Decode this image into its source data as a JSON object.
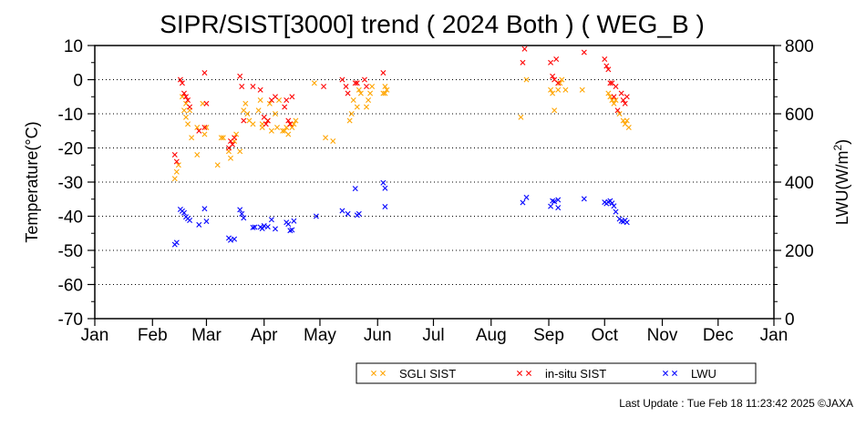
{
  "chart_data": {
    "type": "scatter",
    "title": "SIPR/SIST[3000] trend ( 2024 Both ) ( WEG_B )",
    "ylabel": "Temperature(°C)",
    "y2label_prefix": "LWU(W/m",
    "y2label_sup": "2",
    "y2label_suffix": ")",
    "ylim": [
      -70,
      10
    ],
    "y2lim": [
      0,
      800
    ],
    "yticks": [
      10,
      0,
      -10,
      -20,
      -30,
      -40,
      -50,
      -60,
      -70
    ],
    "y2ticks": [
      800,
      600,
      400,
      200,
      0
    ],
    "xlim_days": [
      0,
      365
    ],
    "xticks": [
      {
        "label": "Jan",
        "day": 0
      },
      {
        "label": "Feb",
        "day": 31
      },
      {
        "label": "Mar",
        "day": 60
      },
      {
        "label": "Apr",
        "day": 91
      },
      {
        "label": "May",
        "day": 121
      },
      {
        "label": "Jun",
        "day": 152
      },
      {
        "label": "Jul",
        "day": 182
      },
      {
        "label": "Aug",
        "day": 213
      },
      {
        "label": "Sep",
        "day": 244
      },
      {
        "label": "Oct",
        "day": 274
      },
      {
        "label": "Nov",
        "day": 305
      },
      {
        "label": "Dec",
        "day": 335
      },
      {
        "label": "Jan",
        "day": 365
      }
    ],
    "grid": "dotted horizontal",
    "legend_placement": "bottom-right",
    "series": [
      {
        "name": "SGLI SIST",
        "color": "#ffa500",
        "axis": "left",
        "points": [
          [
            43,
            -29
          ],
          [
            44,
            -27
          ],
          [
            45,
            -25
          ],
          [
            47,
            -5
          ],
          [
            48,
            -9
          ],
          [
            49,
            -11
          ],
          [
            49,
            -7
          ],
          [
            50,
            -13
          ],
          [
            51,
            -9
          ],
          [
            52,
            -17
          ],
          [
            55,
            -14
          ],
          [
            55,
            -22
          ],
          [
            58,
            -7
          ],
          [
            59,
            -16
          ],
          [
            60,
            -14
          ],
          [
            66,
            -25
          ],
          [
            68,
            -17
          ],
          [
            69,
            -17
          ],
          [
            72,
            -21
          ],
          [
            73,
            -23
          ],
          [
            75,
            -18
          ],
          [
            76,
            -16
          ],
          [
            78,
            -21
          ],
          [
            80,
            -9
          ],
          [
            81,
            -7
          ],
          [
            82,
            -10
          ],
          [
            83,
            -12
          ],
          [
            85,
            -13
          ],
          [
            88,
            -9
          ],
          [
            89,
            -6
          ],
          [
            90,
            -13
          ],
          [
            90,
            -14
          ],
          [
            93,
            -12
          ],
          [
            94,
            -7
          ],
          [
            95,
            -15
          ],
          [
            97,
            -10
          ],
          [
            98,
            -14
          ],
          [
            99,
            -6
          ],
          [
            101,
            -15
          ],
          [
            102,
            -15
          ],
          [
            103,
            -14
          ],
          [
            104,
            -16
          ],
          [
            105,
            -13
          ],
          [
            106,
            -14
          ],
          [
            107,
            -13
          ],
          [
            108,
            -12
          ],
          [
            118,
            -1
          ],
          [
            124,
            -17
          ],
          [
            128,
            -18
          ],
          [
            137,
            -12
          ],
          [
            138,
            -10
          ],
          [
            139,
            -6
          ],
          [
            141,
            -8
          ],
          [
            142,
            -3
          ],
          [
            143,
            -4
          ],
          [
            146,
            -8
          ],
          [
            147,
            -6
          ],
          [
            148,
            -4
          ],
          [
            149,
            -2
          ],
          [
            155,
            -4
          ],
          [
            156,
            -4
          ],
          [
            156,
            -2
          ],
          [
            157,
            -3
          ],
          [
            229,
            -11
          ],
          [
            232,
            0
          ],
          [
            245,
            -3
          ],
          [
            246,
            -4
          ],
          [
            247,
            -9
          ],
          [
            249,
            -3
          ],
          [
            250,
            -1
          ],
          [
            251,
            0
          ],
          [
            253,
            -3
          ],
          [
            262,
            -3
          ],
          [
            276,
            -4
          ],
          [
            277,
            -5
          ],
          [
            278,
            -6
          ],
          [
            279,
            -7
          ],
          [
            280,
            -6
          ],
          [
            282,
            -10
          ],
          [
            284,
            -12
          ],
          [
            285,
            -13
          ],
          [
            286,
            -12
          ],
          [
            287,
            -14
          ]
        ]
      },
      {
        "name": "in-situ SIST",
        "color": "#ff0000",
        "axis": "left",
        "points": [
          [
            43,
            -22
          ],
          [
            44,
            -24
          ],
          [
            46,
            0
          ],
          [
            47,
            -1
          ],
          [
            48,
            -4
          ],
          [
            49,
            -5
          ],
          [
            50,
            -6
          ],
          [
            51,
            -8
          ],
          [
            56,
            -15
          ],
          [
            59,
            2
          ],
          [
            59,
            -14
          ],
          [
            60,
            -7
          ],
          [
            72,
            -20
          ],
          [
            73,
            -18
          ],
          [
            74,
            -19
          ],
          [
            75,
            -17
          ],
          [
            78,
            1
          ],
          [
            79,
            -2
          ],
          [
            80,
            -12
          ],
          [
            85,
            -2
          ],
          [
            89,
            -3
          ],
          [
            91,
            -11
          ],
          [
            92,
            -13
          ],
          [
            93,
            -12
          ],
          [
            95,
            -6
          ],
          [
            97,
            -5
          ],
          [
            102,
            -8
          ],
          [
            103,
            -6
          ],
          [
            104,
            -12
          ],
          [
            105,
            -13
          ],
          [
            106,
            -5
          ],
          [
            123,
            -2
          ],
          [
            133,
            0
          ],
          [
            135,
            -2
          ],
          [
            136,
            -4
          ],
          [
            140,
            -1
          ],
          [
            141,
            -1
          ],
          [
            145,
            0
          ],
          [
            146,
            -2
          ],
          [
            155,
            2
          ],
          [
            230,
            5
          ],
          [
            231,
            9
          ],
          [
            245,
            5
          ],
          [
            246,
            1
          ],
          [
            247,
            0
          ],
          [
            248,
            6
          ],
          [
            249,
            -1
          ],
          [
            263,
            8
          ],
          [
            274,
            6
          ],
          [
            275,
            4
          ],
          [
            276,
            3
          ],
          [
            277,
            -1
          ],
          [
            278,
            -1
          ],
          [
            279,
            -5
          ],
          [
            280,
            -2
          ],
          [
            281,
            -9
          ],
          [
            283,
            -4
          ],
          [
            284,
            -6
          ],
          [
            285,
            -7
          ],
          [
            286,
            -5
          ]
        ]
      },
      {
        "name": "LWU",
        "color": "#0000ff",
        "axis": "right",
        "points": [
          [
            43,
            217
          ],
          [
            44,
            223
          ],
          [
            46,
            320
          ],
          [
            47,
            315
          ],
          [
            48,
            310
          ],
          [
            49,
            298
          ],
          [
            50,
            293
          ],
          [
            51,
            288
          ],
          [
            56,
            275
          ],
          [
            59,
            322
          ],
          [
            60,
            285
          ],
          [
            72,
            236
          ],
          [
            73,
            230
          ],
          [
            75,
            233
          ],
          [
            78,
            319
          ],
          [
            79,
            307
          ],
          [
            80,
            295
          ],
          [
            85,
            267
          ],
          [
            86,
            268
          ],
          [
            89,
            268
          ],
          [
            90,
            264
          ],
          [
            91,
            272
          ],
          [
            93,
            269
          ],
          [
            95,
            290
          ],
          [
            97,
            263
          ],
          [
            103,
            282
          ],
          [
            104,
            277
          ],
          [
            105,
            258
          ],
          [
            106,
            260
          ],
          [
            107,
            286
          ],
          [
            119,
            300
          ],
          [
            133,
            316
          ],
          [
            136,
            307
          ],
          [
            140,
            381
          ],
          [
            141,
            303
          ],
          [
            142,
            307
          ],
          [
            155,
            398
          ],
          [
            156,
            382
          ],
          [
            156,
            328
          ],
          [
            230,
            340
          ],
          [
            232,
            355
          ],
          [
            245,
            329
          ],
          [
            246,
            345
          ],
          [
            247,
            343
          ],
          [
            249,
            348
          ],
          [
            249,
            325
          ],
          [
            263,
            351
          ],
          [
            274,
            341
          ],
          [
            275,
            337
          ],
          [
            276,
            342
          ],
          [
            277,
            345
          ],
          [
            278,
            338
          ],
          [
            279,
            330
          ],
          [
            280,
            313
          ],
          [
            282,
            292
          ],
          [
            283,
            286
          ],
          [
            284,
            284
          ],
          [
            285,
            288
          ],
          [
            286,
            282
          ]
        ]
      }
    ]
  },
  "footer": {
    "last_update": "Last Update : Tue Feb 18 11:23:42 2025  ©JAXA"
  }
}
